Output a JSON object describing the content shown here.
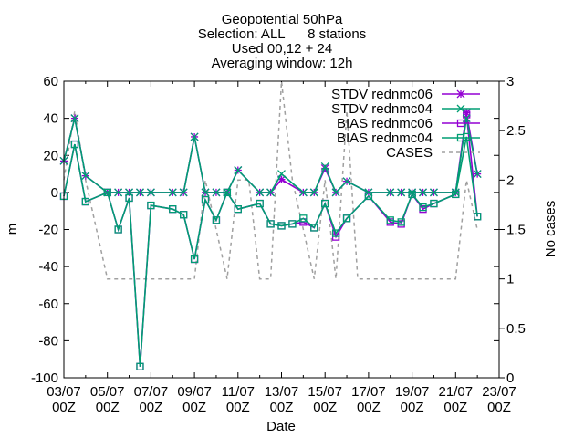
{
  "chart_data": {
    "type": "line",
    "title": [
      "Geopotential 50hPa",
      "Selection: ALL      8 stations",
      "Used 00,12 + 24",
      "Averaging window: 12h"
    ],
    "xlabel": "Date",
    "ylabel": "m",
    "y2label": "No cases",
    "ylim": [
      -100,
      60
    ],
    "y2lim": [
      0,
      3
    ],
    "xlim": [
      0,
      20
    ],
    "x_ticks": [
      {
        "x": 0,
        "top": "03/07",
        "bottom": "00Z"
      },
      {
        "x": 2,
        "top": "05/07",
        "bottom": "00Z"
      },
      {
        "x": 4,
        "top": "07/07",
        "bottom": "00Z"
      },
      {
        "x": 6,
        "top": "09/07",
        "bottom": "00Z"
      },
      {
        "x": 8,
        "top": "11/07",
        "bottom": "00Z"
      },
      {
        "x": 10,
        "top": "13/07",
        "bottom": "00Z"
      },
      {
        "x": 12,
        "top": "15/07",
        "bottom": "00Z"
      },
      {
        "x": 14,
        "top": "17/07",
        "bottom": "00Z"
      },
      {
        "x": 16,
        "top": "19/07",
        "bottom": "00Z"
      },
      {
        "x": 18,
        "top": "21/07",
        "bottom": "00Z"
      },
      {
        "x": 20,
        "top": "23/07",
        "bottom": "00Z"
      }
    ],
    "y_ticks": [
      "60",
      "40",
      "20",
      "0",
      "-20",
      "-40",
      "-60",
      "-80",
      "-100"
    ],
    "y2_ticks": [
      "3",
      "2.5",
      "2",
      "1.5",
      "1",
      "0.5",
      "0"
    ],
    "legend_position": "top-right",
    "series": [
      {
        "name": "STDV rednmc06",
        "axis": "y1",
        "color": "#9400d3",
        "marker": "star",
        "x": [
          0,
          0.5,
          1,
          2,
          2.5,
          3,
          3.5,
          4,
          5,
          5.5,
          6,
          6.5,
          7,
          7.5,
          8,
          9,
          9.5,
          10,
          11,
          11.5,
          12,
          12.5,
          13,
          14,
          15,
          15.5,
          16,
          16.5,
          17,
          18,
          18.5,
          19
        ],
        "y": [
          17,
          40,
          9,
          0,
          0,
          0,
          0,
          0,
          0,
          0,
          30,
          0,
          0,
          0,
          12,
          0,
          0,
          7,
          0,
          0,
          13,
          0,
          6,
          0,
          0,
          0,
          0,
          0,
          0,
          0,
          43,
          10
        ]
      },
      {
        "name": "STDV rednmc04",
        "axis": "y1",
        "color": "#009e73",
        "marker": "cross",
        "x": [
          0,
          0.5,
          1,
          2,
          2.5,
          3,
          3.5,
          4,
          5,
          5.5,
          6,
          6.5,
          7,
          7.5,
          8,
          9,
          9.5,
          10,
          11,
          11.5,
          12,
          12.5,
          13,
          14,
          15,
          15.5,
          16,
          16.5,
          17,
          18,
          18.5,
          19
        ],
        "y": [
          17,
          40,
          9,
          0,
          0,
          0,
          0,
          0,
          0,
          0,
          30,
          0,
          0,
          0,
          12,
          0,
          0,
          10,
          0,
          0,
          14,
          0,
          6,
          0,
          0,
          0,
          0,
          0,
          0,
          0,
          40,
          10
        ]
      },
      {
        "name": "BIAS rednmc06",
        "axis": "y1",
        "color": "#9400d3",
        "marker": "box",
        "x": [
          0,
          0.5,
          1,
          2,
          2.5,
          3,
          3.5,
          4,
          5,
          5.5,
          6,
          6.5,
          7,
          7.5,
          8,
          9,
          9.5,
          10,
          10.5,
          11,
          11.5,
          12,
          12.5,
          13,
          14,
          15,
          15.5,
          16,
          16.5,
          17,
          18,
          18.5,
          19
        ],
        "y": [
          -2,
          26,
          -5,
          0,
          -20,
          -3,
          -94,
          -7,
          -9,
          -12,
          -36,
          -4,
          -15,
          0,
          -9,
          -6,
          -17,
          -18,
          -17,
          -16,
          -19,
          -6,
          -24,
          -14,
          -2,
          -16,
          -17,
          -1,
          -9,
          -6,
          -1,
          42,
          -13
        ]
      },
      {
        "name": "BIAS rednmc04",
        "axis": "y1",
        "color": "#009e73",
        "marker": "box",
        "x": [
          0,
          0.5,
          1,
          2,
          2.5,
          3,
          3.5,
          4,
          5,
          5.5,
          6,
          6.5,
          7,
          7.5,
          8,
          9,
          9.5,
          10,
          10.5,
          11,
          11.5,
          12,
          12.5,
          13,
          14,
          15,
          15.5,
          16,
          16.5,
          17,
          18,
          18.5,
          19
        ],
        "y": [
          -2,
          26,
          -5,
          0,
          -20,
          -3,
          -94,
          -7,
          -9,
          -12,
          -36,
          -4,
          -15,
          0,
          -9,
          -6,
          -17,
          -18,
          -17,
          -14,
          -19,
          -6,
          -22,
          -14,
          -2,
          -15,
          -16,
          -1,
          -8,
          -6,
          -1,
          30,
          -13
        ]
      },
      {
        "name": "CASES",
        "axis": "y2",
        "color": "#a0a0a0",
        "marker": "none",
        "dashed": true,
        "x": [
          0,
          0.5,
          1,
          2,
          3,
          4,
          5,
          6,
          6.5,
          7.5,
          8,
          8.5,
          9,
          9.5,
          10,
          10.5,
          11,
          11.5,
          12,
          12.5,
          13,
          13.5,
          14,
          15,
          16,
          17,
          18,
          18.5,
          19
        ],
        "y": [
          2,
          2.7,
          2,
          1,
          1,
          1,
          1,
          1,
          2,
          1,
          2,
          2,
          1,
          1,
          3,
          2,
          1.5,
          1,
          2,
          1,
          2.7,
          1,
          1,
          1,
          1,
          1,
          1,
          2,
          1.5
        ]
      }
    ]
  }
}
